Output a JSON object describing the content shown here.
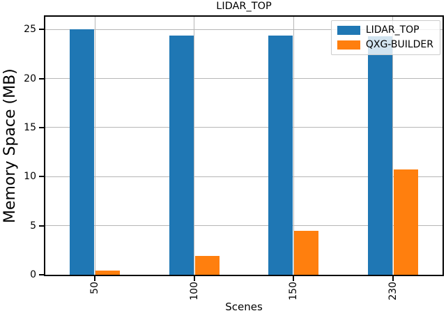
{
  "chart_data": {
    "type": "bar",
    "title": "LIDAR_TOP",
    "xlabel": "Scenes",
    "ylabel": "Memory Space (MB)",
    "categories": [
      "50",
      "100",
      "150",
      "230"
    ],
    "series": [
      {
        "name": "LIDAR_TOP",
        "color": "#1f77b4",
        "values": [
          25.0,
          24.4,
          24.4,
          24.3
        ]
      },
      {
        "name": "QXG-BUILDER",
        "color": "#ff7f0e",
        "values": [
          0.4,
          1.9,
          4.5,
          10.7
        ]
      }
    ],
    "ylim": [
      0,
      26.3
    ],
    "yticks": [
      0,
      5,
      10,
      15,
      20,
      25
    ],
    "grid": true,
    "grid_color": "#b6b6b6",
    "spine_color": "#000000",
    "legend_position": "upper right"
  }
}
